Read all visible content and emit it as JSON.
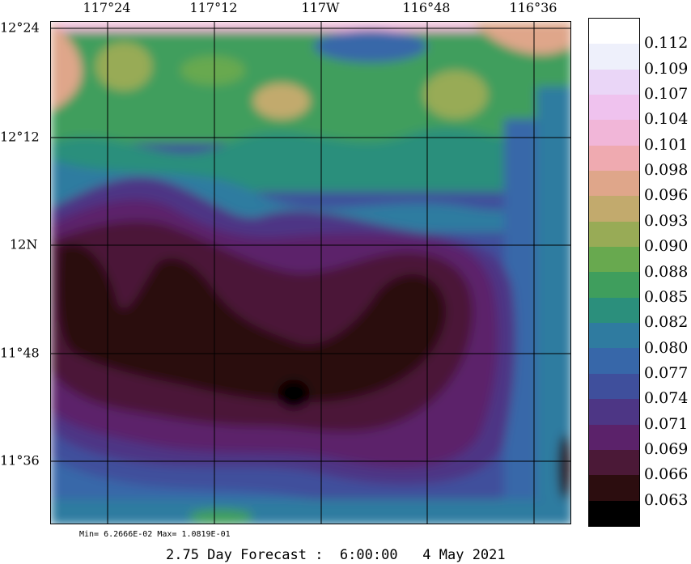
{
  "map": {
    "lon_labels": [
      "117°24",
      "117°12",
      "117W",
      "116°48",
      "116°36"
    ],
    "lat_labels": [
      "12°24",
      "12°12",
      "12N",
      "11°48",
      "11°36"
    ]
  },
  "colorbar": {
    "labels": [
      "0.112",
      "0.109",
      "0.107",
      "0.104",
      "0.101",
      "0.098",
      "0.096",
      "0.093",
      "0.090",
      "0.088",
      "0.085",
      "0.082",
      "0.080",
      "0.077",
      "0.074",
      "0.071",
      "0.069",
      "0.066",
      "0.063"
    ],
    "colors": [
      "#ffffff",
      "#eef0fb",
      "#ead6f7",
      "#efc2ee",
      "#f1b6d8",
      "#efaab0",
      "#dfa68a",
      "#c2aa6d",
      "#98ab56",
      "#68a94f",
      "#3f9e5d",
      "#2b8f7c",
      "#2f7ba0",
      "#3767a9",
      "#3f4f9c",
      "#4d3685",
      "#5b226a",
      "#4b1937",
      "#2c0d0f",
      "#000000"
    ]
  },
  "stats": {
    "text": "Min= 6.2666E-02  Max= 1.0819E-01"
  },
  "footer": {
    "text": "2.75 Day Forecast :  6:00:00   4 May 2021"
  }
}
